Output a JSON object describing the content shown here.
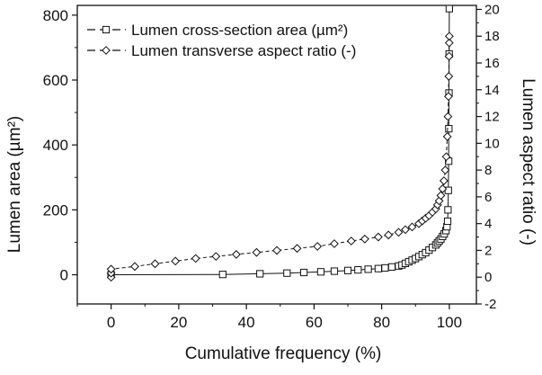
{
  "chart_data": {
    "type": "scatter",
    "title": "",
    "xlabel": "Cumulative frequency (%)",
    "ylabel": "Lumen area (µm²)",
    "y2label": "Lumen aspect ratio (-)",
    "xlim": [
      -10,
      108
    ],
    "ylim": [
      -90,
      830
    ],
    "y2lim": [
      -2,
      20.3
    ],
    "xticks": [
      0,
      20,
      40,
      60,
      80,
      100
    ],
    "yticks": [
      0,
      200,
      400,
      600,
      800
    ],
    "y2ticks": [
      -2,
      0,
      2,
      4,
      6,
      8,
      10,
      12,
      14,
      16,
      18,
      20
    ],
    "grid": false,
    "legend_position": "top-left",
    "series": [
      {
        "name": "Lumen cross-section area (µm²)",
        "axis": "left",
        "marker": "square",
        "x": [
          0,
          33,
          44,
          52,
          57,
          62,
          66,
          70,
          73,
          76,
          79,
          81,
          83,
          85,
          86,
          87,
          88,
          89,
          90,
          91,
          92,
          93,
          94,
          95,
          96,
          96.5,
          97,
          97.5,
          98,
          98.5,
          99,
          99.3,
          99.5,
          99.6,
          99.7,
          99.8,
          99.85,
          99.9,
          99.95,
          100
        ],
        "y": [
          0,
          1,
          3,
          5,
          7,
          9,
          11,
          13,
          15,
          17,
          19,
          21,
          24,
          27,
          30,
          35,
          40,
          45,
          50,
          56,
          62,
          68,
          76,
          84,
          92,
          98,
          104,
          110,
          118,
          126,
          136,
          148,
          165,
          200,
          260,
          350,
          450,
          560,
          680,
          820
        ]
      },
      {
        "name": "Lumen transverse aspect ratio (-)",
        "axis": "right",
        "marker": "diamond",
        "x": [
          0,
          0,
          0,
          7,
          13,
          19,
          25,
          31,
          37,
          43,
          49,
          55,
          61,
          66,
          71,
          75,
          79,
          82,
          85,
          87,
          89,
          91,
          92,
          93,
          94,
          95,
          96,
          96.5,
          97,
          97.5,
          98,
          98.4,
          98.8,
          99.1,
          99.4,
          99.6,
          99.75,
          99.85,
          99.92,
          99.97,
          100
        ],
        "y": [
          0,
          0.3,
          0.6,
          0.8,
          1.0,
          1.2,
          1.4,
          1.55,
          1.7,
          1.85,
          2.0,
          2.15,
          2.3,
          2.5,
          2.7,
          2.85,
          3.0,
          3.15,
          3.35,
          3.55,
          3.75,
          4.0,
          4.2,
          4.4,
          4.6,
          4.85,
          5.1,
          5.4,
          5.7,
          6.1,
          6.6,
          7.2,
          8.0,
          9.0,
          10.5,
          12.0,
          13.5,
          15.0,
          16.5,
          17.5,
          18.0
        ]
      }
    ]
  }
}
